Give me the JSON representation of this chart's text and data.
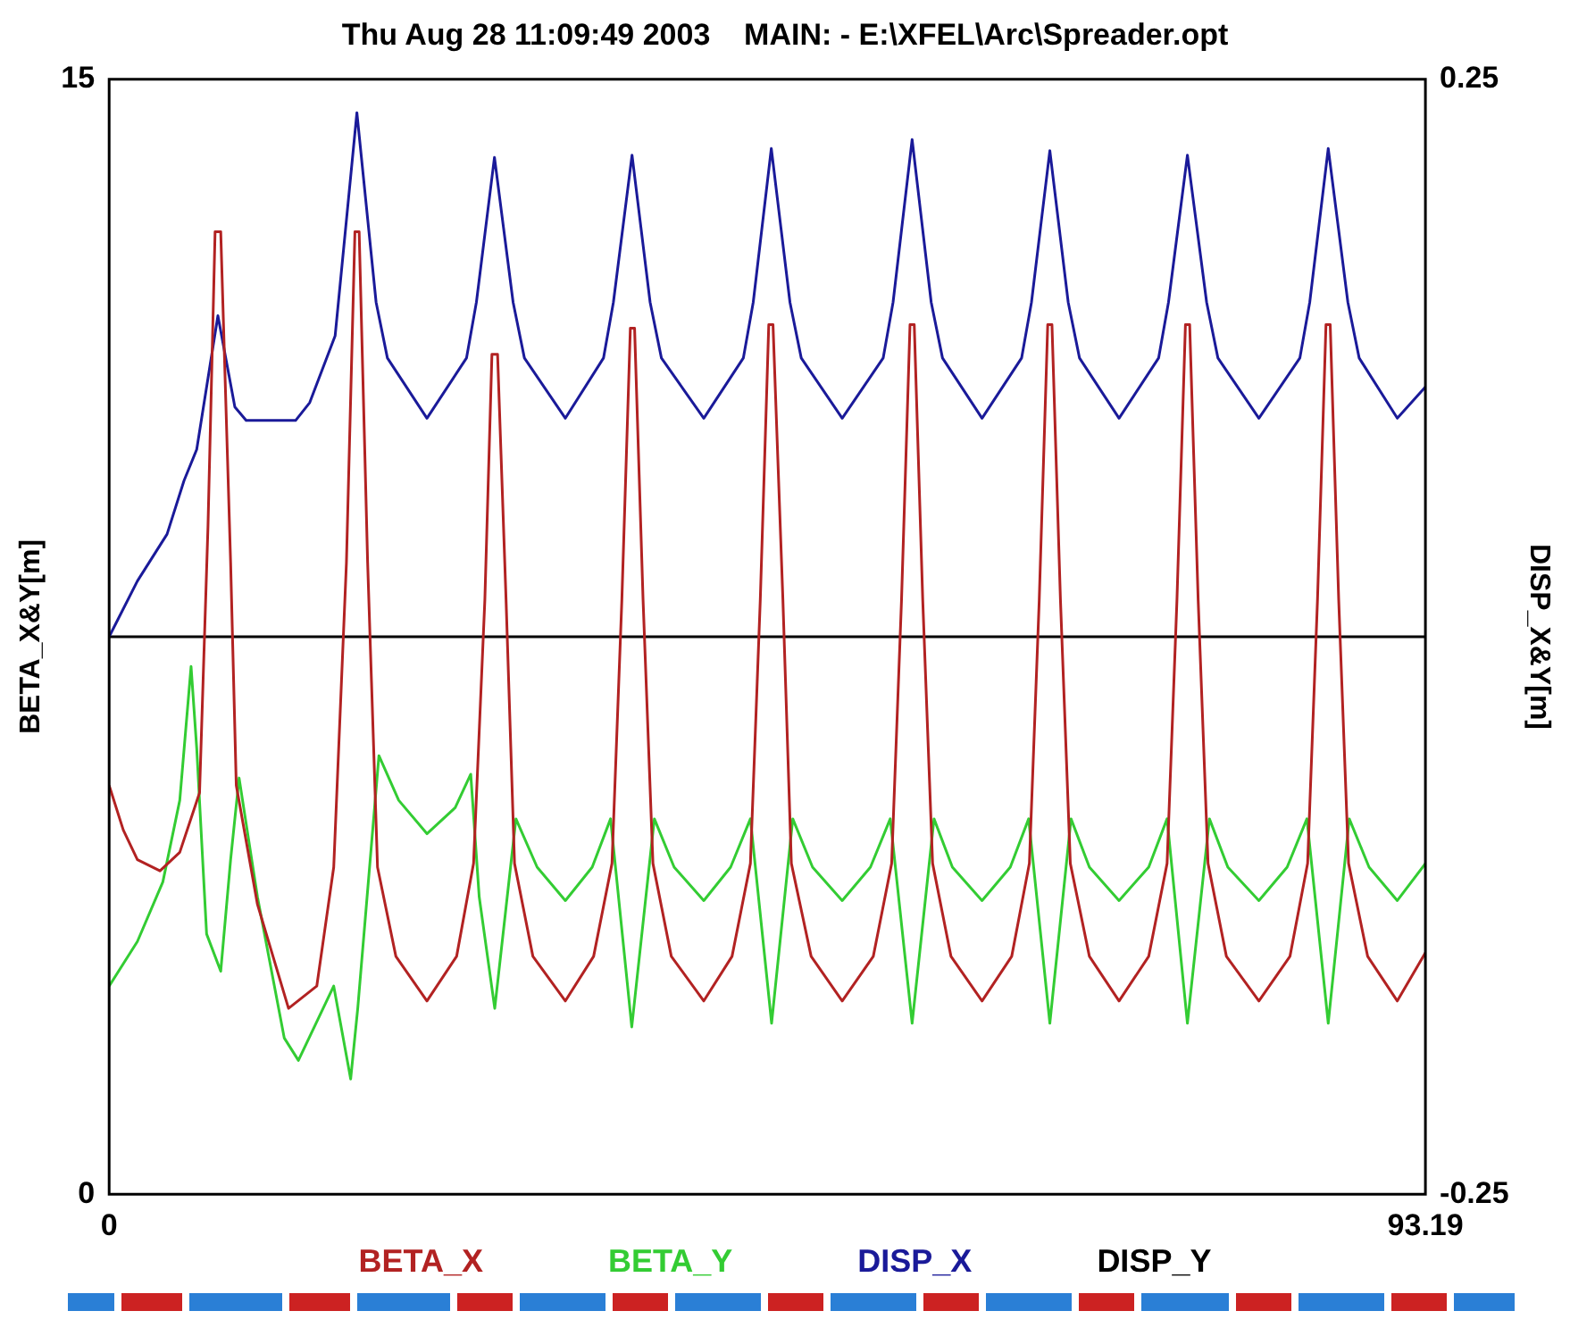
{
  "chart_data": {
    "type": "line",
    "title": "Thu Aug 28 11:09:49 2003    MAIN: - E:\\XFEL\\Arc\\Spreader.opt",
    "ylabel": "BETA_X&Y[m]",
    "y2label": "DISP_X&Y[m]",
    "xlim": [
      0,
      93.19
    ],
    "xticks": [
      0,
      93.19
    ],
    "ylim": [
      0,
      15
    ],
    "yticks": [
      0,
      15
    ],
    "y2lim": [
      -0.25,
      0.25
    ],
    "y2ticks": [
      -0.25,
      0.25
    ],
    "legend": "bottom",
    "marker": "none",
    "line_style": "solid",
    "series": [
      {
        "name": "BETA_X",
        "color": "#b22222",
        "x": [
          0,
          1.0,
          2.0,
          3.6,
          5.0,
          6.4,
          7.0,
          7.5,
          7.9,
          8.6,
          9.0,
          10.5,
          12.7,
          14.7,
          15.9,
          16.8,
          17.4,
          17.7,
          18.3,
          19.0,
          20.3,
          22.5,
          24.6,
          25.8,
          26.6,
          27.1,
          27.5,
          28.1,
          28.7,
          30.0,
          32.3,
          34.3,
          35.6,
          36.3,
          36.9,
          37.2,
          37.8,
          38.5,
          39.8,
          42.1,
          44.1,
          45.4,
          46.1,
          46.7,
          47.0,
          47.7,
          48.3,
          49.7,
          51.9,
          54.1,
          55.4,
          56.1,
          56.7,
          57.0,
          57.6,
          58.3,
          59.6,
          61.8,
          63.9,
          65.15,
          65.85,
          66.45,
          66.75,
          67.35,
          68.05,
          69.4,
          71.5,
          73.6,
          74.9,
          75.6,
          76.2,
          76.5,
          77.1,
          77.8,
          79.1,
          81.4,
          83.6,
          84.85,
          85.55,
          86.15,
          86.45,
          87.05,
          87.75,
          89.1,
          91.2,
          93.19
        ],
        "values": [
          5.5,
          4.9,
          4.5,
          4.35,
          4.6,
          5.4,
          9.0,
          12.95,
          12.95,
          8.5,
          5.5,
          3.9,
          2.5,
          2.8,
          4.4,
          8.5,
          12.95,
          12.95,
          8.5,
          4.4,
          3.2,
          2.6,
          3.2,
          4.45,
          8.0,
          11.3,
          11.3,
          8.0,
          4.45,
          3.2,
          2.6,
          3.2,
          4.45,
          8.0,
          11.65,
          11.65,
          8.0,
          4.45,
          3.2,
          2.6,
          3.2,
          4.45,
          8.0,
          11.7,
          11.7,
          8.0,
          4.45,
          3.2,
          2.6,
          3.2,
          4.45,
          8.0,
          11.7,
          11.7,
          8.0,
          4.45,
          3.2,
          2.6,
          3.2,
          4.45,
          8.0,
          11.7,
          11.7,
          8.0,
          4.45,
          3.2,
          2.6,
          3.2,
          4.45,
          8.0,
          11.7,
          11.7,
          8.0,
          4.45,
          3.2,
          2.6,
          3.2,
          4.45,
          8.0,
          11.7,
          11.7,
          8.0,
          4.45,
          3.2,
          2.6,
          3.25
        ]
      },
      {
        "name": "BETA_Y",
        "color": "#33cc33",
        "x": [
          0,
          2.0,
          3.8,
          5.0,
          5.8,
          6.2,
          6.9,
          7.9,
          8.6,
          9.2,
          10.5,
          12.4,
          13.4,
          15.9,
          17.1,
          17.6,
          19.1,
          20.5,
          22.5,
          24.5,
          25.6,
          26.2,
          27.3,
          28.8,
          30.3,
          32.3,
          34.2,
          35.5,
          37.0,
          38.6,
          40.0,
          42.1,
          44.0,
          45.4,
          46.9,
          48.4,
          49.8,
          51.9,
          53.9,
          55.3,
          56.85,
          58.4,
          59.7,
          61.8,
          63.8,
          65.1,
          66.6,
          68.1,
          69.4,
          71.5,
          73.6,
          74.9,
          76.34,
          77.9,
          79.2,
          81.4,
          83.4,
          84.8,
          86.31,
          87.8,
          89.2,
          91.2,
          93.19
        ],
        "values": [
          2.8,
          3.4,
          4.2,
          5.3,
          7.1,
          6.0,
          3.5,
          3.0,
          4.5,
          5.6,
          4.0,
          2.1,
          1.8,
          2.8,
          1.55,
          2.5,
          5.9,
          5.3,
          4.85,
          5.2,
          5.65,
          4.0,
          2.5,
          5.05,
          4.4,
          3.95,
          4.4,
          5.05,
          2.25,
          5.05,
          4.4,
          3.95,
          4.4,
          5.05,
          2.3,
          5.05,
          4.4,
          3.95,
          4.4,
          5.05,
          2.3,
          5.05,
          4.4,
          3.95,
          4.4,
          5.05,
          2.3,
          5.05,
          4.4,
          3.95,
          4.4,
          5.05,
          2.3,
          5.05,
          4.4,
          3.95,
          4.4,
          5.05,
          2.3,
          5.05,
          4.4,
          3.95,
          4.45
        ]
      },
      {
        "name": "DISP_X",
        "color": "#1a1a99",
        "axis": "y2",
        "x": [
          0,
          2.0,
          4.1,
          5.3,
          6.2,
          7.7,
          8.9,
          9.7,
          13.2,
          14.2,
          16.0,
          17.54,
          18.9,
          19.7,
          22.5,
          25.3,
          26.0,
          27.28,
          28.6,
          29.4,
          32.3,
          35.0,
          35.7,
          37.02,
          38.3,
          39.1,
          42.1,
          44.9,
          45.6,
          46.88,
          48.2,
          49.0,
          51.9,
          54.8,
          55.5,
          56.85,
          58.2,
          59.0,
          61.8,
          64.6,
          65.3,
          66.6,
          67.9,
          68.7,
          71.5,
          74.3,
          75.0,
          76.34,
          77.7,
          78.5,
          81.4,
          84.3,
          85.0,
          86.31,
          87.7,
          88.5,
          91.2,
          93.19
        ],
        "values": [
          0,
          0.025,
          0.046,
          0.07,
          0.084,
          0.144,
          0.103,
          0.097,
          0.097,
          0.105,
          0.135,
          0.235,
          0.15,
          0.125,
          0.098,
          0.125,
          0.15,
          0.215,
          0.15,
          0.125,
          0.098,
          0.125,
          0.15,
          0.216,
          0.15,
          0.125,
          0.098,
          0.125,
          0.15,
          0.219,
          0.15,
          0.125,
          0.098,
          0.125,
          0.15,
          0.223,
          0.15,
          0.125,
          0.098,
          0.125,
          0.15,
          0.218,
          0.15,
          0.125,
          0.098,
          0.125,
          0.15,
          0.216,
          0.15,
          0.125,
          0.098,
          0.125,
          0.15,
          0.219,
          0.15,
          0.125,
          0.098,
          0.112
        ]
      },
      {
        "name": "DISP_Y",
        "color": "#000000",
        "axis": "y2",
        "x": [
          0,
          93.19
        ],
        "values": [
          0,
          0
        ]
      }
    ]
  }
}
